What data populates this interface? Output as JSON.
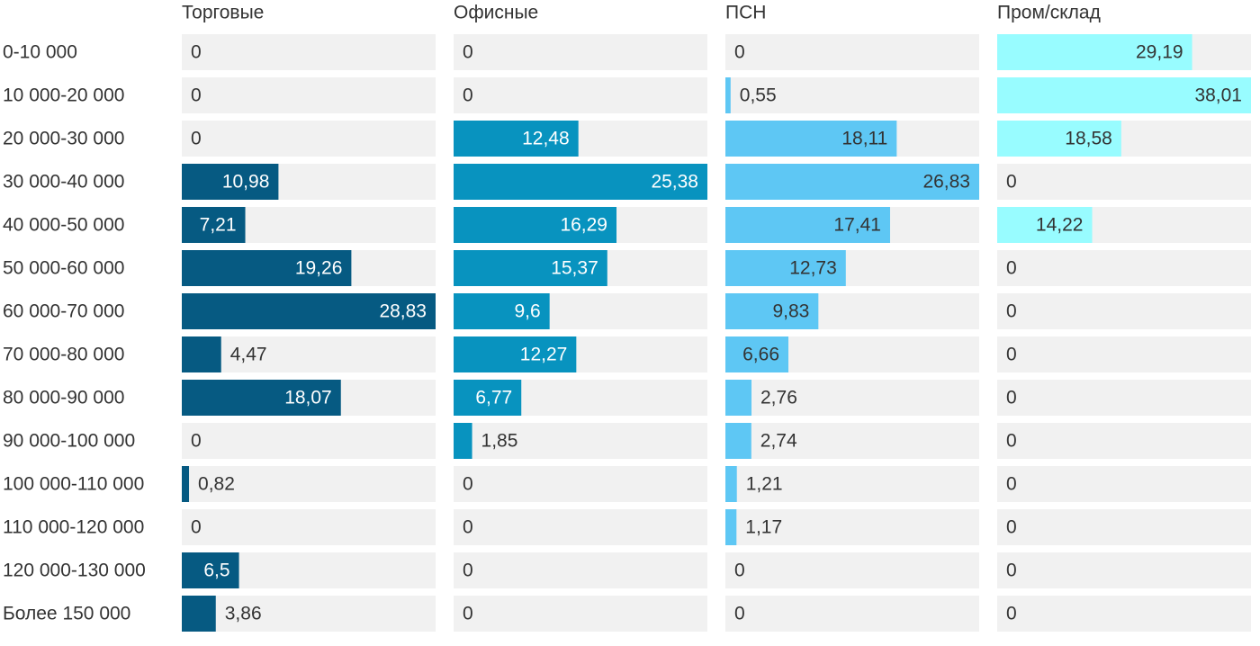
{
  "chart_data": {
    "type": "bar",
    "categories": [
      "0-10 000",
      "10 000-20 000",
      "20 000-30 000",
      "30 000-40 000",
      "40 000-50 000",
      "50 000-60 000",
      "60 000-70 000",
      "70 000-80 000",
      "80 000-90 000",
      "90 000-100 000",
      "100 000-110 000",
      "110 000-120 000",
      "120 000-130 000",
      "Более 150 000"
    ],
    "series": [
      {
        "name": "Торговые",
        "color": "#065a82",
        "xlim": [
          0,
          28.83
        ],
        "values": [
          0,
          0,
          0,
          10.98,
          7.21,
          19.26,
          28.83,
          4.47,
          18.07,
          0,
          0.82,
          0,
          6.5,
          3.86
        ],
        "value_labels": [
          "0",
          "0",
          "0",
          "10,98",
          "7,21",
          "19,26",
          "28,83",
          "4,47",
          "18,07",
          "0",
          "0,82",
          "0",
          "6,5",
          "3,86"
        ]
      },
      {
        "name": "Офисные",
        "color": "#0893bf",
        "xlim": [
          0,
          25.38
        ],
        "values": [
          0,
          0,
          12.48,
          25.38,
          16.29,
          15.37,
          9.6,
          12.27,
          6.77,
          1.85,
          0,
          0,
          0,
          0
        ],
        "value_labels": [
          "0",
          "0",
          "12,48",
          "25,38",
          "16,29",
          "15,37",
          "9,6",
          "12,27",
          "6,77",
          "1,85",
          "0",
          "0",
          "0",
          "0"
        ]
      },
      {
        "name": "ПСН",
        "color": "#5ec7f4",
        "xlim": [
          0,
          26.83
        ],
        "values": [
          0,
          0.55,
          18.11,
          26.83,
          17.41,
          12.73,
          9.83,
          6.66,
          2.76,
          2.74,
          1.21,
          1.17,
          0,
          0
        ],
        "value_labels": [
          "0",
          "0,55",
          "18,11",
          "26,83",
          "17,41",
          "12,73",
          "9,83",
          "6,66",
          "2,76",
          "2,74",
          "1,21",
          "1,17",
          "0",
          "0"
        ]
      },
      {
        "name": "Пром/склад",
        "color": "#98fcff",
        "xlim": [
          0,
          38.01
        ],
        "values": [
          29.19,
          38.01,
          18.58,
          0,
          14.22,
          0,
          0,
          0,
          0,
          0,
          0,
          0,
          0,
          0
        ],
        "value_labels": [
          "29,19",
          "38,01",
          "18,58",
          "0",
          "14,22",
          "0",
          "0",
          "0",
          "0",
          "0",
          "0",
          "0",
          "0",
          "0"
        ]
      }
    ]
  }
}
